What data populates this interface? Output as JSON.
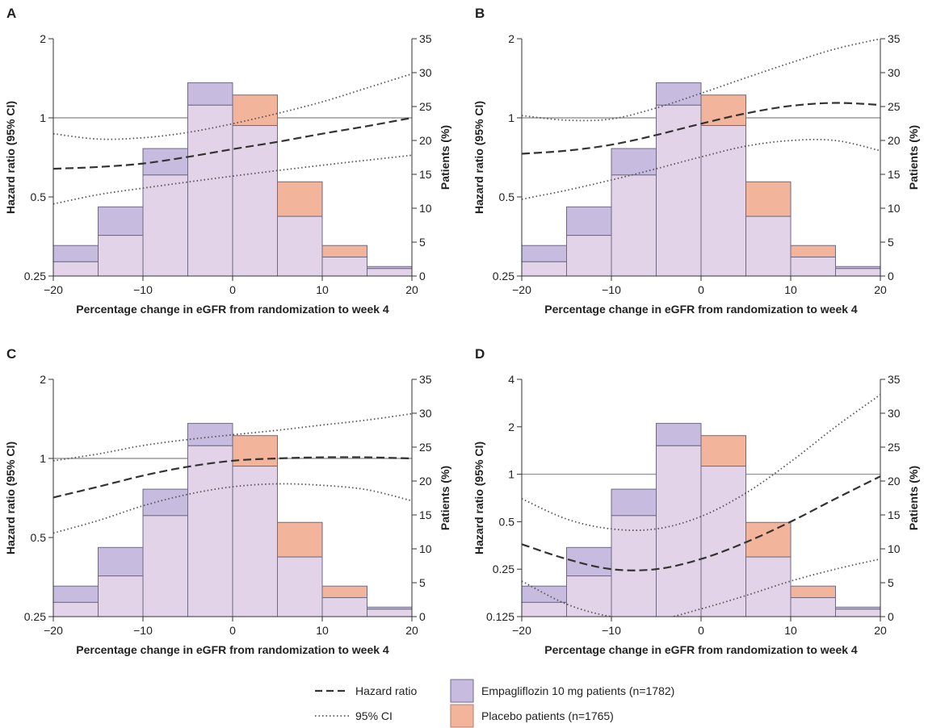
{
  "colors": {
    "empagliflozin_fill": "#c7bcdf",
    "empagliflozin_stroke": "#6d6a8e",
    "placebo_fill": "#f2b49a",
    "overlap_fill": "#e3d3e8",
    "bar_stroke": "#6e6a82",
    "reference_line": "#9a9a9a",
    "hazard_line": "#333333",
    "ci_line": "#555555",
    "axis": "#333333"
  },
  "legend": {
    "hazard_ratio": "Hazard ratio",
    "ci": "95% CI",
    "empagliflozin": "Empagliflozin 10 mg patients (n=1782)",
    "placebo": "Placebo patients (n=1765)"
  },
  "chart_data": [
    {
      "panel": "A",
      "type": "bar",
      "xlabel": "Percentage change in eGFR from randomization to week 4",
      "ylabel_left": "Hazard ratio (95% CI)",
      "ylabel_right": "Patients (%)",
      "xlim": [
        -20,
        20
      ],
      "x_ticks": [
        "−20",
        "−10",
        "0",
        "10",
        "20"
      ],
      "x_tick_values": [
        -20,
        -10,
        0,
        10,
        20
      ],
      "left_scale": "log2",
      "left_ticks": [
        "0.25",
        "0.5",
        "1",
        "2"
      ],
      "left_tick_values": [
        0.25,
        0.5,
        1,
        2
      ],
      "left_lim": [
        0.25,
        2
      ],
      "right_ticks": [
        "0",
        "5",
        "10",
        "15",
        "20",
        "25",
        "30",
        "35"
      ],
      "right_tick_values": [
        0,
        5,
        10,
        15,
        20,
        25,
        30,
        35
      ],
      "right_lim": [
        0,
        35
      ],
      "bin_edges": [
        -20,
        -15,
        -10,
        -5,
        0,
        5,
        10,
        15,
        20
      ],
      "series": [
        {
          "name": "Empagliflozin 10 mg patients (n=1782)",
          "values": [
            4.5,
            10.2,
            18.8,
            28.5,
            22.2,
            8.8,
            2.8,
            1.4
          ]
        },
        {
          "name": "Placebo patients (n=1765)",
          "values": [
            2.1,
            6.0,
            14.9,
            25.2,
            26.7,
            13.9,
            4.5,
            1.1
          ]
        }
      ],
      "hazard_ratio": {
        "x": [
          -20,
          -15,
          -10,
          -5,
          0,
          5,
          10,
          15,
          20
        ],
        "y": [
          0.64,
          0.65,
          0.67,
          0.71,
          0.76,
          0.81,
          0.87,
          0.93,
          1.0
        ]
      },
      "ci_upper": {
        "x": [
          -20,
          -15,
          -10,
          -5,
          0,
          5,
          10,
          15,
          20
        ],
        "y": [
          0.87,
          0.83,
          0.84,
          0.88,
          0.95,
          1.04,
          1.15,
          1.3,
          1.47
        ]
      },
      "ci_lower": {
        "x": [
          -20,
          -15,
          -10,
          -5,
          0,
          5,
          10,
          15,
          20
        ],
        "y": [
          0.47,
          0.51,
          0.54,
          0.57,
          0.6,
          0.63,
          0.66,
          0.69,
          0.72
        ]
      },
      "reference_line": 1
    },
    {
      "panel": "B",
      "type": "bar",
      "xlabel": "Percentage change in eGFR from randomization to week 4",
      "ylabel_left": "Hazard ratio (95% CI)",
      "ylabel_right": "Patients (%)",
      "xlim": [
        -20,
        20
      ],
      "x_ticks": [
        "−20",
        "−10",
        "0",
        "10",
        "20"
      ],
      "x_tick_values": [
        -20,
        -10,
        0,
        10,
        20
      ],
      "left_scale": "log2",
      "left_ticks": [
        "0.25",
        "0.5",
        "1",
        "2"
      ],
      "left_tick_values": [
        0.25,
        0.5,
        1,
        2
      ],
      "left_lim": [
        0.25,
        2
      ],
      "right_ticks": [
        "0",
        "5",
        "10",
        "15",
        "20",
        "25",
        "30",
        "35"
      ],
      "right_tick_values": [
        0,
        5,
        10,
        15,
        20,
        25,
        30,
        35
      ],
      "right_lim": [
        0,
        35
      ],
      "bin_edges": [
        -20,
        -15,
        -10,
        -5,
        0,
        5,
        10,
        15,
        20
      ],
      "series": [
        {
          "name": "Empagliflozin 10 mg patients (n=1782)",
          "values": [
            4.5,
            10.2,
            18.8,
            28.5,
            22.2,
            8.8,
            2.8,
            1.4
          ]
        },
        {
          "name": "Placebo patients (n=1765)",
          "values": [
            2.1,
            6.0,
            14.9,
            25.2,
            26.7,
            13.9,
            4.5,
            1.1
          ]
        }
      ],
      "hazard_ratio": {
        "x": [
          -20,
          -15,
          -10,
          -5,
          0,
          5,
          10,
          15,
          20
        ],
        "y": [
          0.73,
          0.75,
          0.79,
          0.86,
          0.95,
          1.04,
          1.11,
          1.14,
          1.12
        ]
      },
      "ci_upper": {
        "x": [
          -20,
          -15,
          -10,
          -5,
          0,
          5,
          10,
          15,
          20
        ],
        "y": [
          1.02,
          0.98,
          0.99,
          1.09,
          1.24,
          1.42,
          1.62,
          1.83,
          2.0
        ]
      },
      "ci_lower": {
        "x": [
          -20,
          -15,
          -10,
          -5,
          0,
          5,
          10,
          15,
          20
        ],
        "y": [
          0.49,
          0.53,
          0.58,
          0.64,
          0.71,
          0.78,
          0.82,
          0.82,
          0.75
        ]
      },
      "reference_line": 1
    },
    {
      "panel": "C",
      "type": "bar",
      "xlabel": "Percentage change in eGFR from randomization to week 4",
      "ylabel_left": "Hazard ratio (95% CI)",
      "ylabel_right": "Patients (%)",
      "xlim": [
        -20,
        20
      ],
      "x_ticks": [
        "−20",
        "−10",
        "0",
        "10",
        "20"
      ],
      "x_tick_values": [
        -20,
        -10,
        0,
        10,
        20
      ],
      "left_scale": "log2",
      "left_ticks": [
        "0.25",
        "0.5",
        "1",
        "2"
      ],
      "left_tick_values": [
        0.25,
        0.5,
        1,
        2
      ],
      "left_lim": [
        0.25,
        2
      ],
      "right_ticks": [
        "0",
        "5",
        "10",
        "15",
        "20",
        "25",
        "30",
        "35"
      ],
      "right_tick_values": [
        0,
        5,
        10,
        15,
        20,
        25,
        30,
        35
      ],
      "right_lim": [
        0,
        35
      ],
      "bin_edges": [
        -20,
        -15,
        -10,
        -5,
        0,
        5,
        10,
        15,
        20
      ],
      "series": [
        {
          "name": "Empagliflozin 10 mg patients (n=1782)",
          "values": [
            4.5,
            10.2,
            18.8,
            28.5,
            22.2,
            8.8,
            2.8,
            1.4
          ]
        },
        {
          "name": "Placebo patients (n=1765)",
          "values": [
            2.1,
            6.0,
            14.9,
            25.2,
            26.7,
            13.9,
            4.5,
            1.1
          ]
        }
      ],
      "hazard_ratio": {
        "x": [
          -20,
          -15,
          -10,
          -5,
          0,
          5,
          10,
          15,
          20
        ],
        "y": [
          0.71,
          0.78,
          0.86,
          0.93,
          0.98,
          1.0,
          1.01,
          1.01,
          1.0
        ]
      },
      "ci_upper": {
        "x": [
          -20,
          -15,
          -10,
          -5,
          0,
          5,
          10,
          15,
          20
        ],
        "y": [
          0.98,
          1.04,
          1.12,
          1.18,
          1.23,
          1.28,
          1.34,
          1.4,
          1.48
        ]
      },
      "ci_lower": {
        "x": [
          -20,
          -15,
          -10,
          -5,
          0,
          5,
          10,
          15,
          20
        ],
        "y": [
          0.52,
          0.58,
          0.66,
          0.73,
          0.78,
          0.8,
          0.79,
          0.76,
          0.69
        ]
      },
      "reference_line": 1
    },
    {
      "panel": "D",
      "type": "bar",
      "xlabel": "Percentage change in eGFR from randomization to week 4",
      "ylabel_left": "Hazard ratio (95% CI)",
      "ylabel_right": "Patients (%)",
      "xlim": [
        -20,
        20
      ],
      "x_ticks": [
        "−20",
        "−10",
        "0",
        "10",
        "20"
      ],
      "x_tick_values": [
        -20,
        -10,
        0,
        10,
        20
      ],
      "left_scale": "log2",
      "left_ticks": [
        "0.125",
        "0.25",
        "0.5",
        "1",
        "2",
        "4"
      ],
      "left_tick_values": [
        0.125,
        0.25,
        0.5,
        1,
        2,
        4
      ],
      "left_lim": [
        0.125,
        4
      ],
      "right_ticks": [
        "0",
        "5",
        "10",
        "15",
        "20",
        "25",
        "30",
        "35"
      ],
      "right_tick_values": [
        0,
        5,
        10,
        15,
        20,
        25,
        30,
        35
      ],
      "right_lim": [
        0,
        35
      ],
      "bin_edges": [
        -20,
        -15,
        -10,
        -5,
        0,
        5,
        10,
        15,
        20
      ],
      "series": [
        {
          "name": "Empagliflozin 10 mg patients (n=1782)",
          "values": [
            4.5,
            10.2,
            18.8,
            28.5,
            22.2,
            8.8,
            2.8,
            1.4
          ]
        },
        {
          "name": "Placebo patients (n=1765)",
          "values": [
            2.1,
            6.0,
            14.9,
            25.2,
            26.7,
            13.9,
            4.5,
            1.1
          ]
        }
      ],
      "hazard_ratio": {
        "x": [
          -20,
          -15,
          -10,
          -5,
          0,
          5,
          10,
          15,
          20
        ],
        "y": [
          0.36,
          0.29,
          0.25,
          0.25,
          0.29,
          0.37,
          0.5,
          0.7,
          0.97
        ]
      },
      "ci_upper": {
        "x": [
          -20,
          -15,
          -10,
          -5,
          0,
          5,
          10,
          15,
          20
        ],
        "y": [
          0.7,
          0.52,
          0.45,
          0.45,
          0.54,
          0.76,
          1.2,
          2.0,
          3.2
        ]
      },
      "ci_lower": {
        "x": [
          -20,
          -15,
          -10,
          -5,
          0,
          5,
          10,
          15,
          20
        ],
        "y": [
          0.21,
          0.15,
          0.125,
          0.12,
          0.14,
          0.17,
          0.21,
          0.25,
          0.29
        ]
      },
      "reference_line": 1
    }
  ]
}
